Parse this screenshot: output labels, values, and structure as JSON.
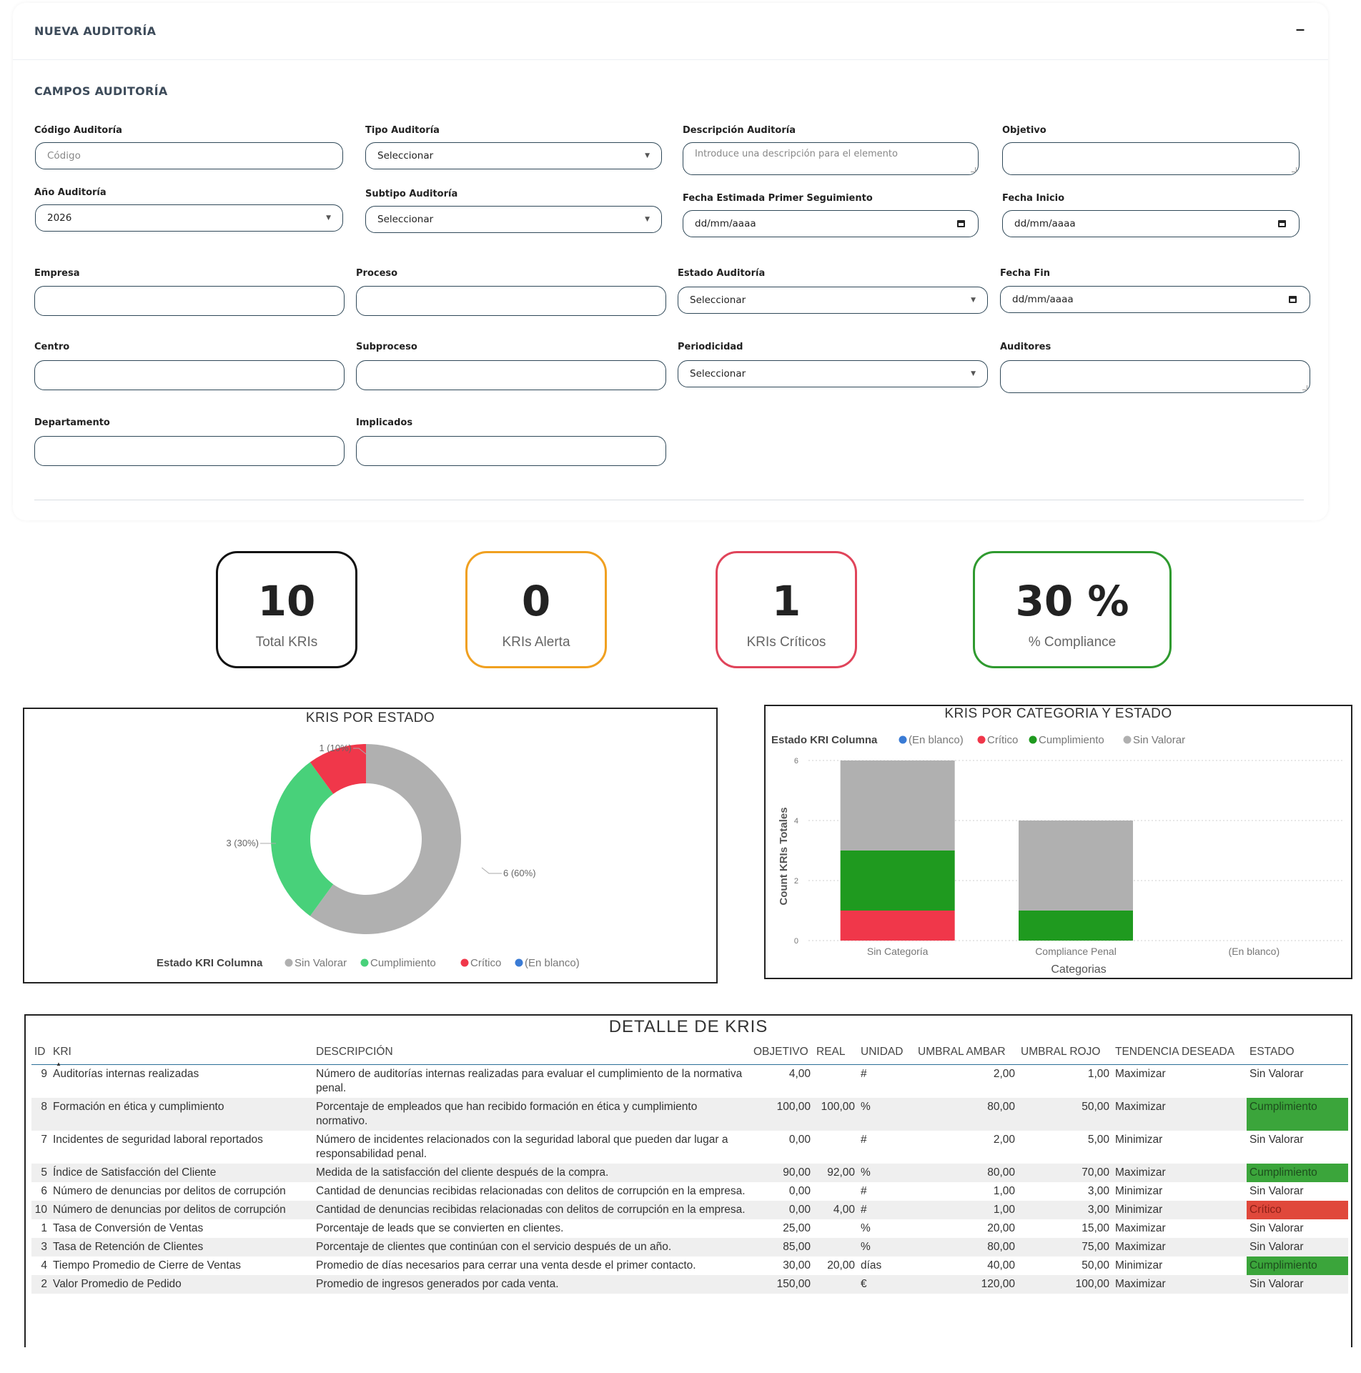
{
  "form": {
    "title": "NUEVA AUDITORÍA",
    "collapse_label": "–",
    "section_title": "CAMPOS AUDITORÍA",
    "fields": {
      "codigo": {
        "label": "Código Auditoría",
        "placeholder": "Código"
      },
      "tipo": {
        "label": "Tipo Auditoría",
        "value": "Seleccionar"
      },
      "descripcion": {
        "label": "Descripción Auditoría",
        "placeholder": "Introduce una descripción para el elemento"
      },
      "objetivo": {
        "label": "Objetivo",
        "value": ""
      },
      "anio": {
        "label": "Año Auditoría",
        "value": "2026"
      },
      "subtipo": {
        "label": "Subtipo Auditoría",
        "value": "Seleccionar"
      },
      "fecha_seguimiento": {
        "label": "Fecha Estimada Primer Seguimiento",
        "value": "dd/mm/aaaa"
      },
      "fecha_inicio": {
        "label": "Fecha Inicio",
        "value": "dd/mm/aaaa"
      },
      "empresa": {
        "label": "Empresa",
        "value": ""
      },
      "proceso": {
        "label": "Proceso",
        "value": ""
      },
      "estado": {
        "label": "Estado Auditoría",
        "value": "Seleccionar"
      },
      "fecha_fin": {
        "label": "Fecha Fin",
        "value": "dd/mm/aaaa"
      },
      "centro": {
        "label": "Centro",
        "value": ""
      },
      "subproceso": {
        "label": "Subproceso",
        "value": ""
      },
      "periodicidad": {
        "label": "Periodicidad",
        "value": "Seleccionar"
      },
      "auditores": {
        "label": "Auditores",
        "value": ""
      },
      "departamento": {
        "label": "Departamento",
        "value": ""
      },
      "implicados": {
        "label": "Implicados",
        "value": ""
      }
    }
  },
  "kpis": [
    {
      "value": "10",
      "label": "Total KRIs",
      "color": "#111111"
    },
    {
      "value": "0",
      "label": "KRIs Alerta",
      "color": "#f0a020"
    },
    {
      "value": "1",
      "label": "KRIs Críticos",
      "color": "#e0445a"
    },
    {
      "value": "30 %",
      "label": "% Compliance",
      "color": "#2f9a2f"
    }
  ],
  "colors": {
    "sin_valorar": "#b0b0b0",
    "cumplimiento": "#48d17a",
    "cumplimiento_bar": "#1f9a1f",
    "critico": "#f0374a",
    "en_blanco": "#3a7bd5"
  },
  "donut": {
    "title": "KRIS POR ESTADO",
    "legend_title": "Estado KRI Columna",
    "legend": [
      "Sin Valorar",
      "Cumplimiento",
      "Crítico",
      "(En blanco)"
    ],
    "labels": {
      "critico": "1 (10%)",
      "cumplimiento": "3 (30%)",
      "sin_valorar": "6 (60%)"
    }
  },
  "bar": {
    "title": "KRIS POR CATEGORIA Y ESTADO",
    "legend_title": "Estado KRI Columna",
    "legend": [
      "(En blanco)",
      "Crítico",
      "Cumplimiento",
      "Sin Valorar"
    ],
    "ylabel": "Count KRIs Totales",
    "xlabel": "Categorias",
    "yticks": [
      "0",
      "2",
      "4",
      "6"
    ]
  },
  "chart_data": [
    {
      "type": "pie",
      "title": "KRIS POR ESTADO",
      "legend_title": "Estado KRI Columna",
      "categories": [
        "Sin Valorar",
        "Cumplimiento",
        "Crítico",
        "(En blanco)"
      ],
      "values": [
        6,
        3,
        1,
        0
      ],
      "percentages": [
        60,
        30,
        10,
        0
      ]
    },
    {
      "type": "bar",
      "stacked": true,
      "title": "KRIS POR CATEGORIA Y ESTADO",
      "xlabel": "Categorias",
      "ylabel": "Count KRIs Totales",
      "ylim": [
        0,
        6
      ],
      "categories": [
        "Sin Categoría",
        "Compliance Penal",
        "(En blanco)"
      ],
      "series": [
        {
          "name": "(En blanco)",
          "values": [
            0,
            0,
            0
          ]
        },
        {
          "name": "Crítico",
          "values": [
            1,
            0,
            0
          ]
        },
        {
          "name": "Cumplimiento",
          "values": [
            2,
            1,
            0
          ]
        },
        {
          "name": "Sin Valorar",
          "values": [
            3,
            3,
            0
          ]
        }
      ]
    }
  ],
  "table": {
    "title": "DETALLE DE KRIS",
    "sort_indicator": "▲",
    "headers": [
      "ID",
      "KRI",
      "DESCRIPCIÓN",
      "OBJETIVO",
      "REAL",
      "UNIDAD",
      "UMBRAL AMBAR",
      "UMBRAL ROJO",
      "TENDENCIA DESEADA",
      "ESTADO"
    ],
    "rows": [
      {
        "id": "9",
        "kri": "Auditorías internas realizadas",
        "desc": "Número de auditorías internas realizadas para evaluar el cumplimiento de la normativa penal.",
        "objetivo": "4,00",
        "real": "",
        "unidad": "#",
        "ambar": "2,00",
        "rojo": "1,00",
        "tendencia": "Maximizar",
        "estado": "Sin Valorar"
      },
      {
        "id": "8",
        "kri": "Formación en ética y cumplimiento",
        "desc": "Porcentaje de empleados que han recibido formación en ética y cumplimiento normativo.",
        "objetivo": "100,00",
        "real": "100,00",
        "unidad": "%",
        "ambar": "80,00",
        "rojo": "50,00",
        "tendencia": "Maximizar",
        "estado": "Cumplimiento"
      },
      {
        "id": "7",
        "kri": "Incidentes de seguridad laboral reportados",
        "desc": "Número de incidentes relacionados con la seguridad laboral que pueden dar lugar a responsabilidad penal.",
        "objetivo": "0,00",
        "real": "",
        "unidad": "#",
        "ambar": "2,00",
        "rojo": "5,00",
        "tendencia": "Minimizar",
        "estado": "Sin Valorar"
      },
      {
        "id": "5",
        "kri": "Índice de Satisfacción del Cliente",
        "desc": "Medida de la satisfacción del cliente después de la compra.",
        "objetivo": "90,00",
        "real": "92,00",
        "unidad": "%",
        "ambar": "80,00",
        "rojo": "70,00",
        "tendencia": "Maximizar",
        "estado": "Cumplimiento"
      },
      {
        "id": "6",
        "kri": "Número de denuncias por delitos de corrupción",
        "desc": "Cantidad de denuncias recibidas relacionadas con delitos de corrupción en la empresa.",
        "objetivo": "0,00",
        "real": "",
        "unidad": "#",
        "ambar": "1,00",
        "rojo": "3,00",
        "tendencia": "Minimizar",
        "estado": "Sin Valorar"
      },
      {
        "id": "10",
        "kri": "Número de denuncias por delitos de corrupción",
        "desc": "Cantidad de denuncias recibidas relacionadas con delitos de corrupción en la empresa.",
        "objetivo": "0,00",
        "real": "4,00",
        "unidad": "#",
        "ambar": "1,00",
        "rojo": "3,00",
        "tendencia": "Minimizar",
        "estado": "Crítico"
      },
      {
        "id": "1",
        "kri": "Tasa de Conversión de Ventas",
        "desc": "Porcentaje de leads que se convierten en clientes.",
        "objetivo": "25,00",
        "real": "",
        "unidad": "%",
        "ambar": "20,00",
        "rojo": "15,00",
        "tendencia": "Maximizar",
        "estado": "Sin Valorar"
      },
      {
        "id": "3",
        "kri": "Tasa de Retención de Clientes",
        "desc": "Porcentaje de clientes que continúan con el servicio después de un año.",
        "objetivo": "85,00",
        "real": "",
        "unidad": "%",
        "ambar": "80,00",
        "rojo": "75,00",
        "tendencia": "Maximizar",
        "estado": "Sin Valorar"
      },
      {
        "id": "4",
        "kri": "Tiempo Promedio de Cierre de Ventas",
        "desc": "Promedio de días necesarios para cerrar una venta desde el primer contacto.",
        "objetivo": "30,00",
        "real": "20,00",
        "unidad": "días",
        "ambar": "40,00",
        "rojo": "50,00",
        "tendencia": "Minimizar",
        "estado": "Cumplimiento"
      },
      {
        "id": "2",
        "kri": "Valor Promedio de Pedido",
        "desc": "Promedio de ingresos generados por cada venta.",
        "objetivo": "150,00",
        "real": "",
        "unidad": "€",
        "ambar": "120,00",
        "rojo": "100,00",
        "tendencia": "Maximizar",
        "estado": "Sin Valorar"
      }
    ]
  }
}
